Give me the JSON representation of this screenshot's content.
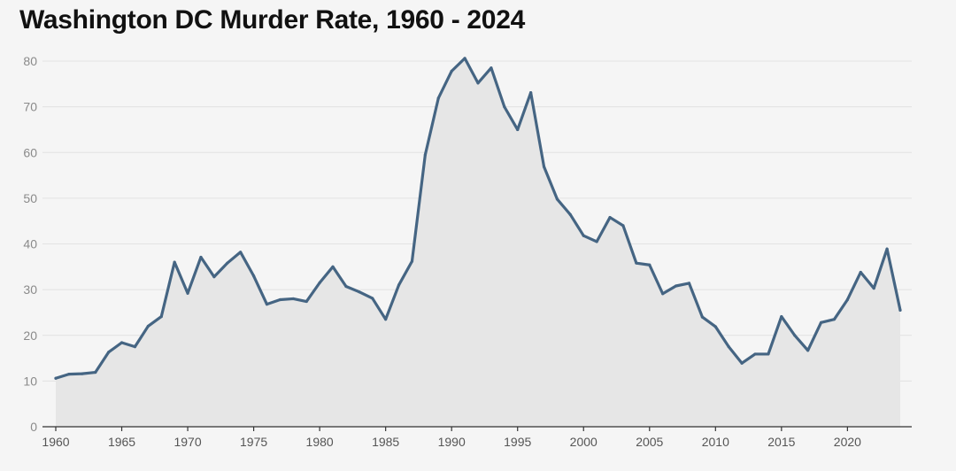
{
  "chart_data": {
    "type": "area",
    "title": "Washington DC Murder Rate, 1960 - 2024",
    "xlabel": "",
    "ylabel": "",
    "xlim": [
      1960,
      2024
    ],
    "ylim": [
      0,
      80
    ],
    "grid": true,
    "y_ticks": [
      0,
      10,
      20,
      30,
      40,
      50,
      60,
      70,
      80
    ],
    "x_ticks": [
      1960,
      1965,
      1970,
      1975,
      1980,
      1985,
      1990,
      1995,
      2000,
      2005,
      2010,
      2015,
      2020
    ],
    "colors": {
      "line": "#456583",
      "area": "#e6e6e6",
      "background": "#f5f5f5"
    },
    "series": [
      {
        "name": "Murder rate",
        "x": [
          1960,
          1961,
          1962,
          1963,
          1964,
          1965,
          1966,
          1967,
          1968,
          1969,
          1970,
          1971,
          1972,
          1973,
          1974,
          1975,
          1976,
          1977,
          1978,
          1979,
          1980,
          1981,
          1982,
          1983,
          1984,
          1985,
          1986,
          1987,
          1988,
          1989,
          1990,
          1991,
          1992,
          1993,
          1994,
          1995,
          1996,
          1997,
          1998,
          1999,
          2000,
          2001,
          2002,
          2003,
          2004,
          2005,
          2006,
          2007,
          2008,
          2009,
          2010,
          2011,
          2012,
          2013,
          2014,
          2015,
          2016,
          2017,
          2018,
          2019,
          2020,
          2021,
          2022,
          2023,
          2024
        ],
        "values": [
          10.6,
          11.5,
          11.6,
          11.9,
          16.3,
          18.4,
          17.5,
          22.0,
          24.1,
          36.0,
          29.2,
          37.1,
          32.8,
          35.8,
          38.2,
          33.0,
          26.8,
          27.8,
          28.0,
          27.4,
          31.5,
          35.0,
          30.7,
          29.5,
          28.1,
          23.5,
          31.0,
          36.2,
          59.5,
          71.9,
          77.8,
          80.6,
          75.2,
          78.5,
          70.0,
          65.0,
          73.1,
          56.9,
          49.8,
          46.4,
          41.8,
          40.5,
          45.8,
          44.0,
          35.8,
          35.4,
          29.1,
          30.8,
          31.4,
          24.0,
          21.9,
          17.5,
          13.9,
          15.9,
          15.9,
          24.1,
          20.0,
          16.7,
          22.8,
          23.5,
          27.8,
          33.8,
          30.3,
          38.9,
          25.5
        ]
      }
    ]
  }
}
